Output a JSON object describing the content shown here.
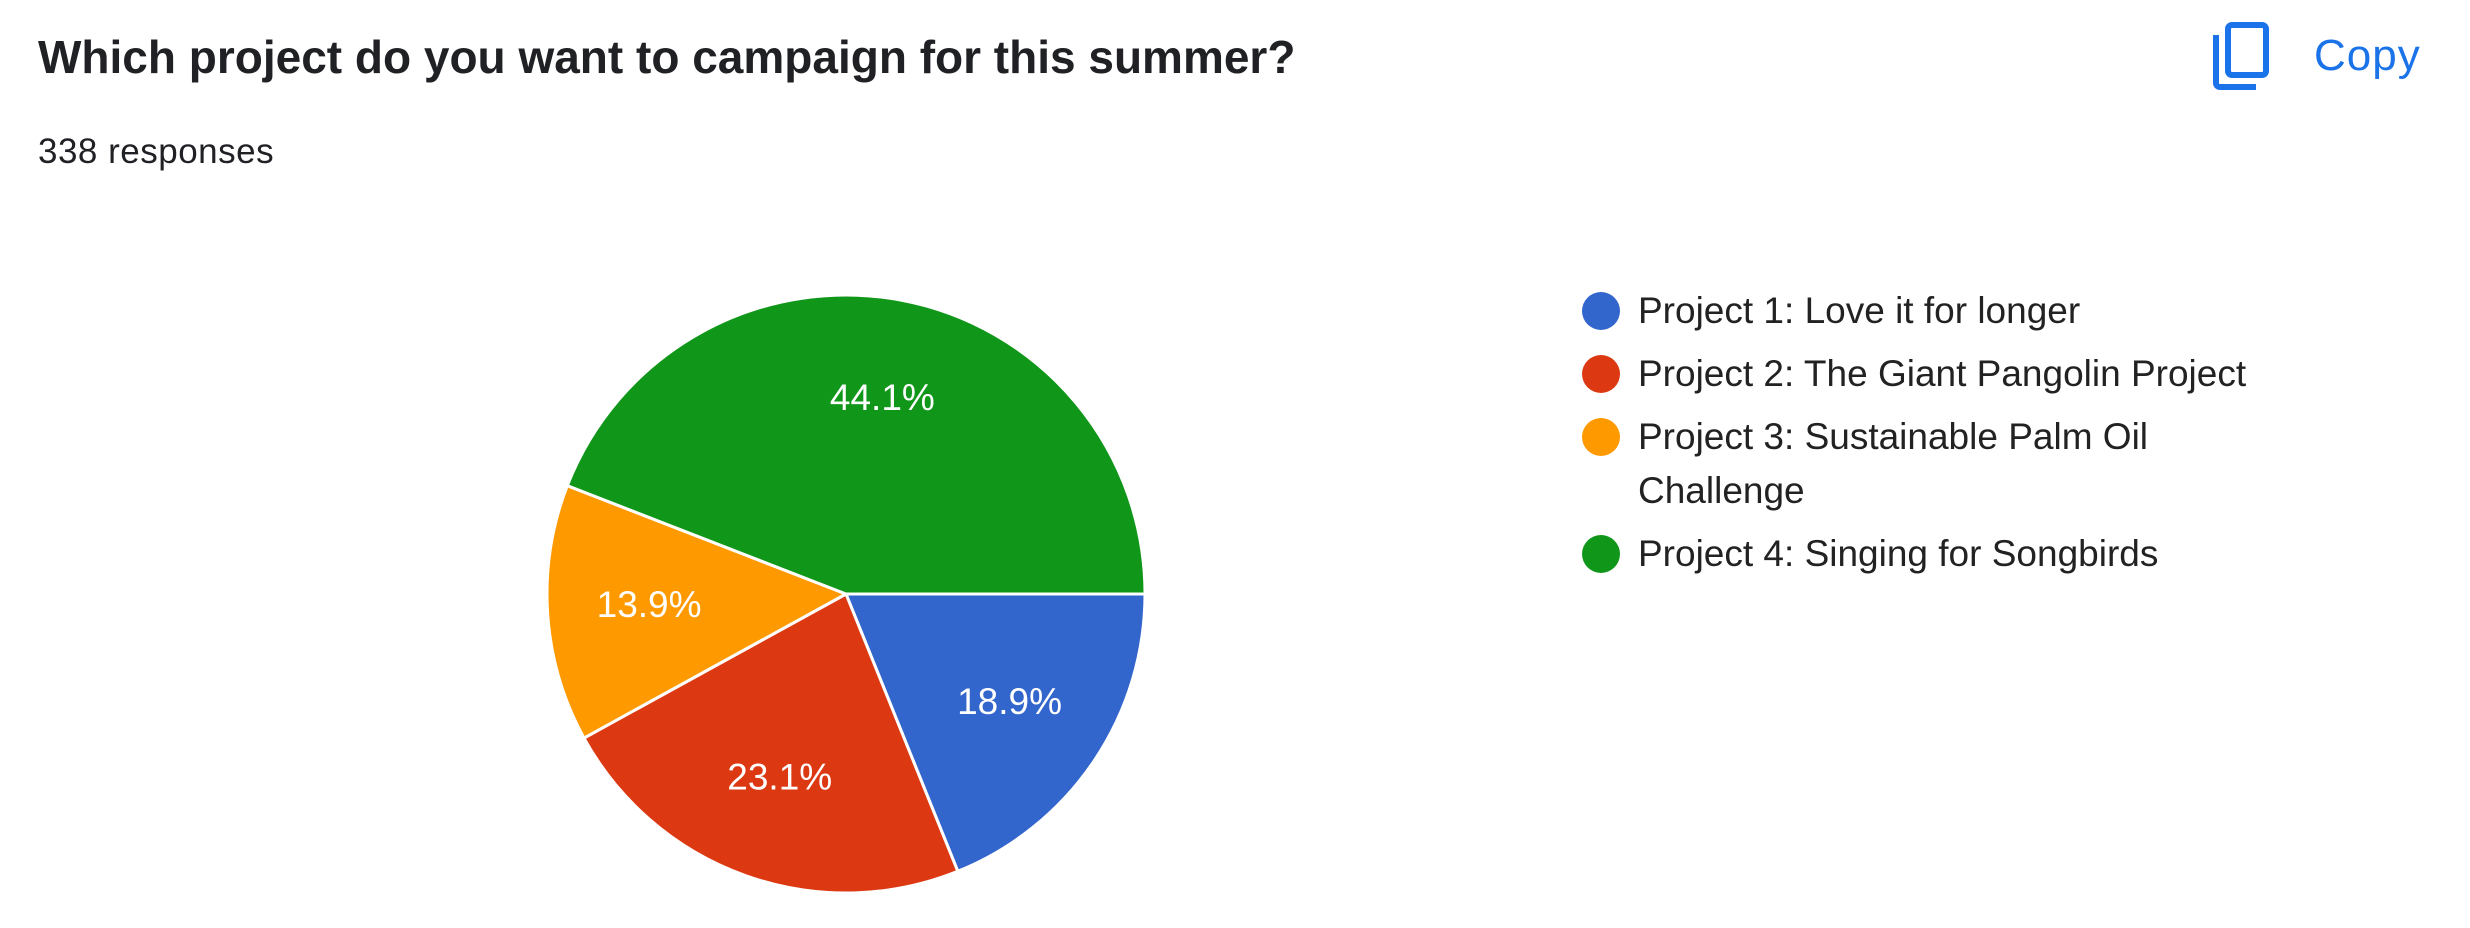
{
  "toolbar": {
    "copy": "Copy"
  },
  "chart_data": {
    "type": "pie",
    "title": "Which project do you want to campaign for this summer?",
    "subtitle": "338 responses",
    "categories": [
      "Project 1: Love it for longer",
      "Project 2: The Giant Pangolin Project",
      "Project 3: Sustainable Palm Oil Challenge",
      "Project 4: Singing for Songbirds"
    ],
    "values": [
      18.9,
      23.1,
      13.9,
      44.1
    ],
    "value_labels": [
      "18.9%",
      "23.1%",
      "13.9%",
      "44.1%"
    ],
    "colors": [
      "#3366cc",
      "#dc3912",
      "#ff9900",
      "#109618"
    ],
    "legend": "right"
  }
}
